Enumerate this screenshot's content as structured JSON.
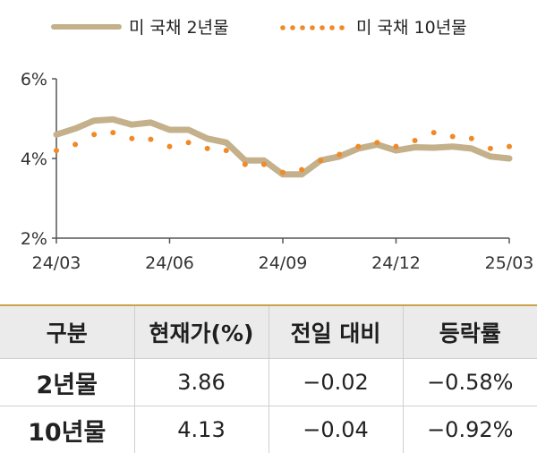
{
  "chart_data": {
    "type": "line",
    "title": "",
    "xlabel": "",
    "ylabel": "",
    "ylim": [
      2,
      6
    ],
    "y_ticks": [
      "6%",
      "4%",
      "2%"
    ],
    "x_ticks": [
      "24/03",
      "24/06",
      "24/09",
      "24/12",
      "25/03"
    ],
    "legend_position": "top",
    "grid": false,
    "x": [
      "24/03",
      "24/03",
      "24/04",
      "24/04",
      "24/05",
      "24/05",
      "24/06",
      "24/06",
      "24/07",
      "24/07",
      "24/08",
      "24/08",
      "24/09",
      "24/09",
      "24/10",
      "24/10",
      "24/11",
      "24/11",
      "24/12",
      "24/12",
      "25/01",
      "25/01",
      "25/02",
      "25/02",
      "25/03"
    ],
    "series": [
      {
        "name": "미 국채 2년물",
        "color": "#c4b08a",
        "style": "solid",
        "values": [
          4.6,
          4.75,
          4.95,
          4.98,
          4.85,
          4.9,
          4.72,
          4.72,
          4.5,
          4.4,
          3.95,
          3.95,
          3.6,
          3.6,
          3.95,
          4.05,
          4.25,
          4.35,
          4.2,
          4.28,
          4.27,
          4.3,
          4.25,
          4.05,
          4.0
        ]
      },
      {
        "name": "미 국채 10년물",
        "color": "#f08a28",
        "style": "dotted",
        "values": [
          4.2,
          4.35,
          4.6,
          4.65,
          4.5,
          4.48,
          4.3,
          4.4,
          4.25,
          4.2,
          3.85,
          3.85,
          3.65,
          3.72,
          3.95,
          4.1,
          4.3,
          4.4,
          4.3,
          4.45,
          4.65,
          4.55,
          4.5,
          4.25,
          4.3
        ]
      }
    ]
  },
  "table": {
    "headers": [
      "구분",
      "현재가(%)",
      "전일 대비",
      "등락률"
    ],
    "rows": [
      [
        "2년물",
        "3.86",
        "−0.02",
        "−0.58%"
      ],
      [
        "10년물",
        "4.13",
        "−0.04",
        "−0.92%"
      ]
    ]
  }
}
